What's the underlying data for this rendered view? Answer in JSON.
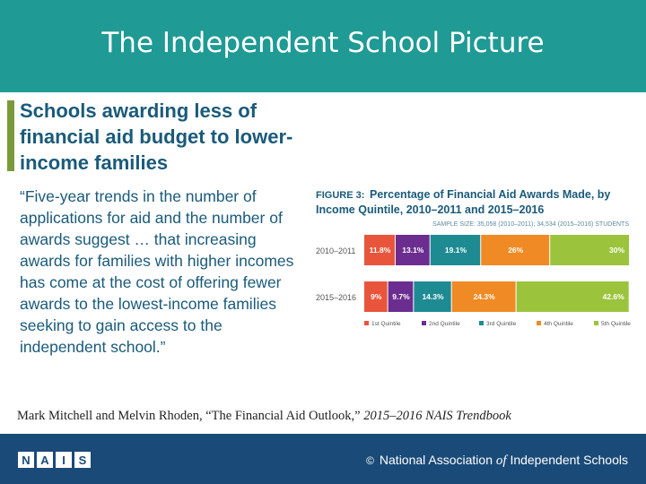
{
  "header": {
    "title": "The Independent School Picture"
  },
  "subtitle": "Schools awarding less of financial aid budget to lower-income families",
  "quote": "“Five-year trends in the number of applications for aid and the number of awards suggest … that increasing awards for families with higher incomes has come at the cost of offering fewer awards to the lowest-income families seeking to gain access to the independent school.”",
  "citation": {
    "authors": "Mark Mitchell and Melvin Rhoden, “The Financial Aid Outlook,” ",
    "source": "2015–2016 NAIS Trendbook"
  },
  "footer": {
    "logo_letters": [
      "N",
      "A",
      "I",
      "S"
    ],
    "copyright_symbol": "©",
    "org_name_part1": "National Association",
    "org_name_of": "of",
    "org_name_part2": "Independent Schools"
  },
  "colors": {
    "header": "#1f9a94",
    "footer": "#1a4a78",
    "accent": "#7a9a3a",
    "text": "#1a5a7a"
  },
  "chart_data": {
    "type": "bar",
    "orientation": "horizontal-stacked-100",
    "figure_label": "FIGURE 3:",
    "title_line1": "Percentage of Financial Aid Awards Made, by",
    "title_line2": "Income Quintile, 2010–2011 and 2015–2016",
    "sample_size": "SAMPLE SIZE: 35,058 (2010–2011); 34,534 (2015–2016) STUDENTS",
    "categories": [
      "2010–2011",
      "2015–2016"
    ],
    "series": [
      {
        "name": "1st Quintile",
        "color": "#e8553b",
        "values": [
          11.8,
          9
        ],
        "labels": [
          "11.8%",
          "9%"
        ]
      },
      {
        "name": "2nd Quintile",
        "color": "#6b2d8f",
        "values": [
          13.1,
          9.7
        ],
        "labels": [
          "13.1%",
          "9.7%"
        ]
      },
      {
        "name": "3rd Quintile",
        "color": "#1e8b93",
        "values": [
          19.1,
          14.3
        ],
        "labels": [
          "19.1%",
          "14.3%"
        ]
      },
      {
        "name": "4th Quintile",
        "color": "#f08a24",
        "values": [
          26,
          24.3
        ],
        "labels": [
          "26%",
          "24.3%"
        ]
      },
      {
        "name": "5th Quintile",
        "color": "#9bc43c",
        "values": [
          30,
          42.6
        ],
        "labels": [
          "30%",
          "42.6%"
        ]
      }
    ],
    "xlim": [
      0,
      100
    ],
    "legend_position": "bottom"
  }
}
